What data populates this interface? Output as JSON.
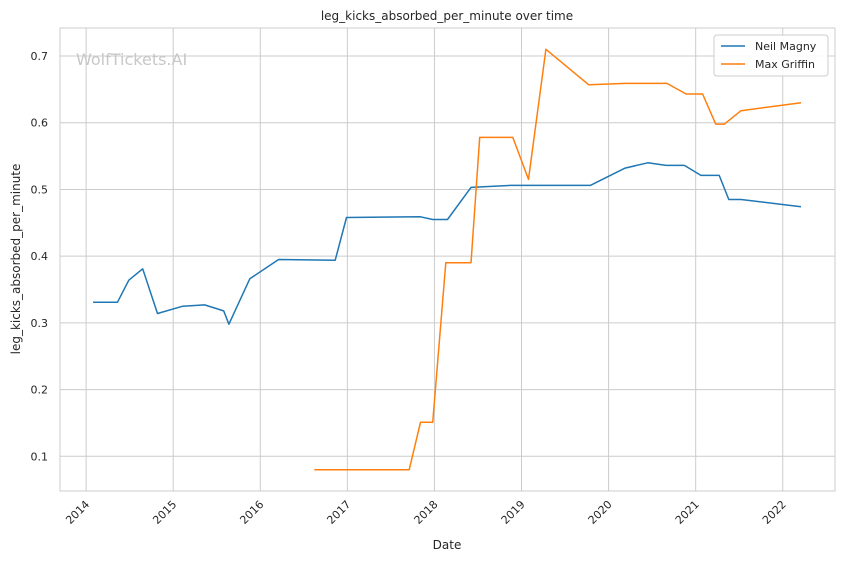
{
  "chart_data": {
    "type": "line",
    "title": "leg_kicks_absorbed_per_minute over time",
    "xlabel": "Date",
    "ylabel": "leg_kicks_absorbed_per_minute",
    "watermark": "WolfTickets.AI",
    "xlim": [
      2013.7,
      2022.6
    ],
    "ylim": [
      0.048,
      0.742
    ],
    "x_ticks": [
      2014,
      2015,
      2016,
      2017,
      2018,
      2019,
      2020,
      2021,
      2022
    ],
    "y_ticks": [
      0.1,
      0.2,
      0.3,
      0.4,
      0.5,
      0.6,
      0.7
    ],
    "grid": true,
    "legend_position": "top-right",
    "series": [
      {
        "name": "Neil Magny",
        "color": "#1f77b4",
        "x": [
          2014.08,
          2014.36,
          2014.49,
          2014.65,
          2014.82,
          2015.11,
          2015.36,
          2015.58,
          2015.64,
          2015.88,
          2016.21,
          2016.86,
          2016.99,
          2017.84,
          2017.98,
          2018.15,
          2018.42,
          2018.87,
          2019.79,
          2020.19,
          2020.45,
          2020.66,
          2020.87,
          2021.06,
          2021.27,
          2021.38,
          2021.52,
          2022.21
        ],
        "y": [
          0.331,
          0.331,
          0.364,
          0.381,
          0.314,
          0.325,
          0.327,
          0.318,
          0.298,
          0.366,
          0.395,
          0.394,
          0.458,
          0.459,
          0.455,
          0.455,
          0.503,
          0.506,
          0.506,
          0.532,
          0.54,
          0.536,
          0.536,
          0.521,
          0.521,
          0.485,
          0.485,
          0.474
        ]
      },
      {
        "name": "Max Griffin",
        "color": "#ff7f0e",
        "x": [
          2016.62,
          2017.71,
          2017.84,
          2017.98,
          2018.13,
          2018.42,
          2018.52,
          2018.9,
          2019.08,
          2019.28,
          2019.77,
          2020.2,
          2020.67,
          2020.89,
          2021.08,
          2021.23,
          2021.33,
          2021.52,
          2022.21
        ],
        "y": [
          0.08,
          0.08,
          0.151,
          0.151,
          0.39,
          0.39,
          0.578,
          0.578,
          0.515,
          0.71,
          0.657,
          0.659,
          0.659,
          0.643,
          0.643,
          0.598,
          0.598,
          0.618,
          0.63
        ]
      }
    ]
  }
}
